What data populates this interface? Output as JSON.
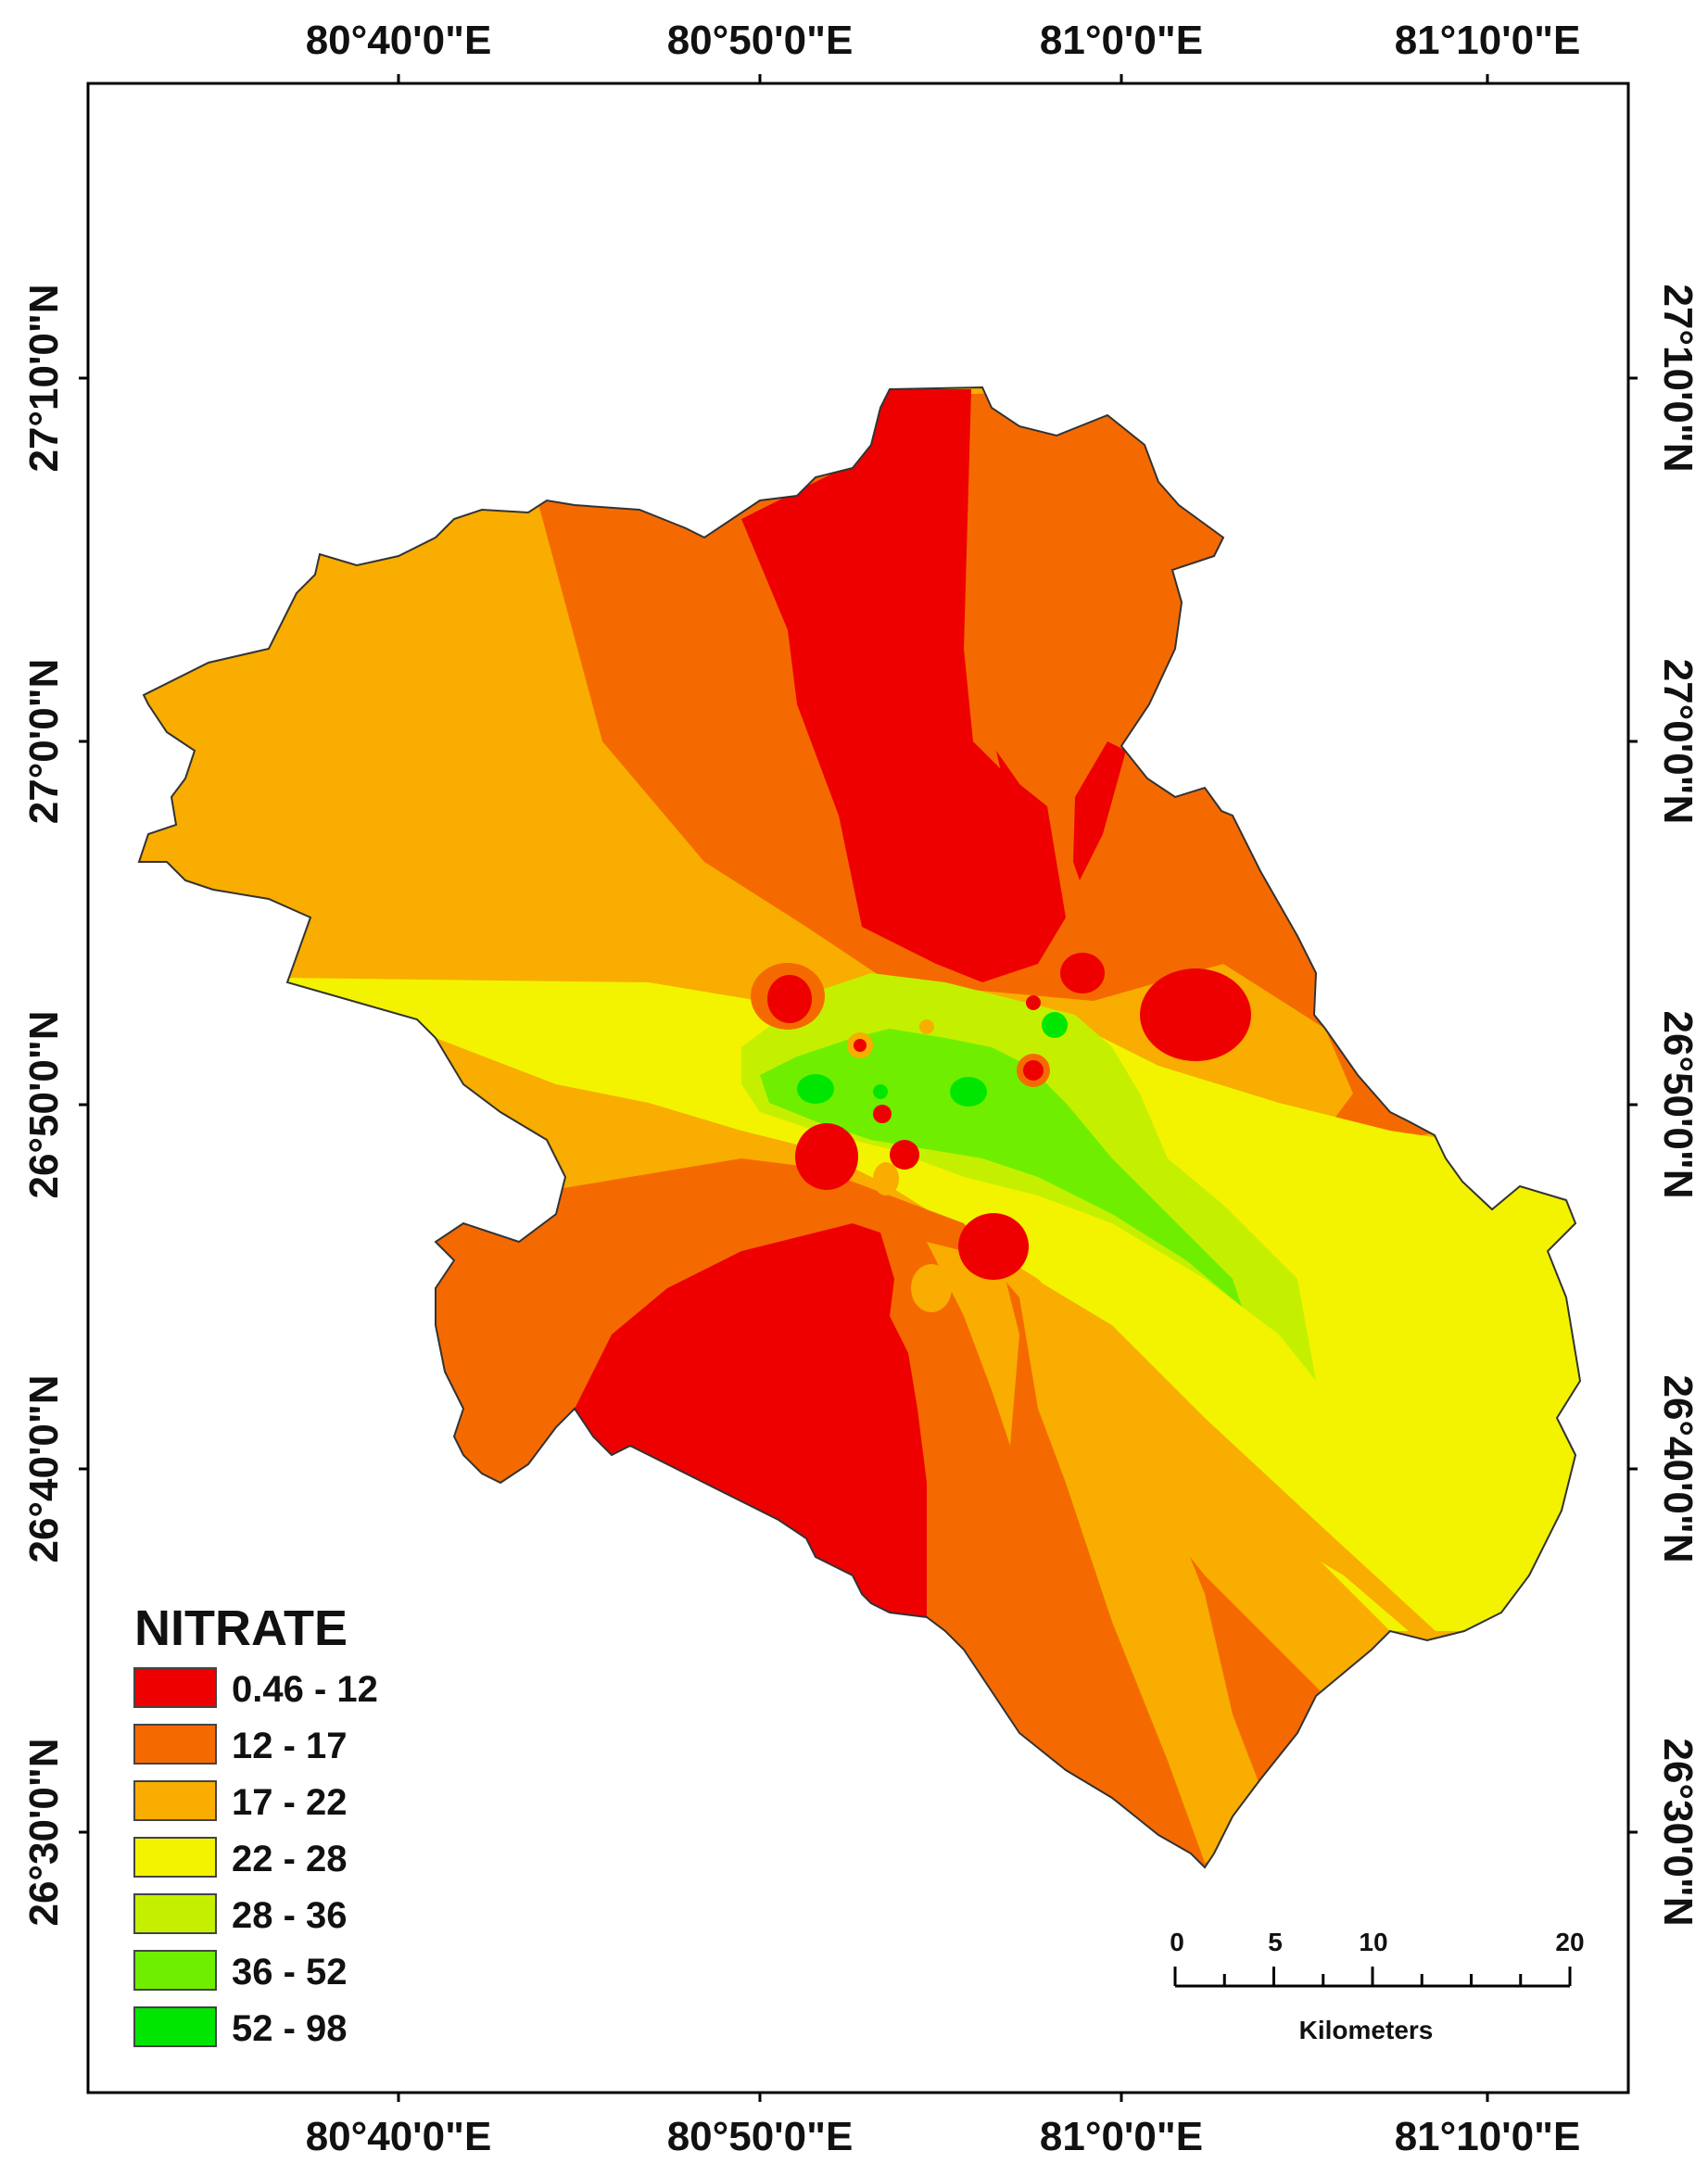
{
  "map": {
    "top_axis_labels": [
      "80°40'0\"E",
      "80°50'0\"E",
      "81°0'0\"E",
      "81°10'0\"E"
    ],
    "bottom_axis_labels": [
      "80°40'0\"E",
      "80°50'0\"E",
      "81°0'0\"E",
      "81°10'0\"E"
    ],
    "left_axis_labels": [
      "27°10'0\"N",
      "27°0'0\"N",
      "26°50'0\"N",
      "26°40'0\"N",
      "26°30'0\"N"
    ],
    "right_axis_labels": [
      "27°10'0\"N",
      "27°0'0\"N",
      "26°50'0\"N",
      "26°40'0\"N",
      "26°30'0\"N"
    ]
  },
  "legend": {
    "title": "NITRATE",
    "classes": [
      {
        "label": "0.46 - 12",
        "color": "#ee0000"
      },
      {
        "label": "12 - 17",
        "color": "#f56a00"
      },
      {
        "label": "17 - 22",
        "color": "#f8ad00"
      },
      {
        "label": "22 - 28",
        "color": "#f3f300"
      },
      {
        "label": "28 - 36",
        "color": "#c4f000"
      },
      {
        "label": "36 - 52",
        "color": "#70ee00"
      },
      {
        "label": "52 - 98",
        "color": "#00e600"
      }
    ]
  },
  "scale_bar": {
    "ticks": [
      "0",
      "5",
      "10",
      "20"
    ],
    "unit": "Kilometers"
  }
}
